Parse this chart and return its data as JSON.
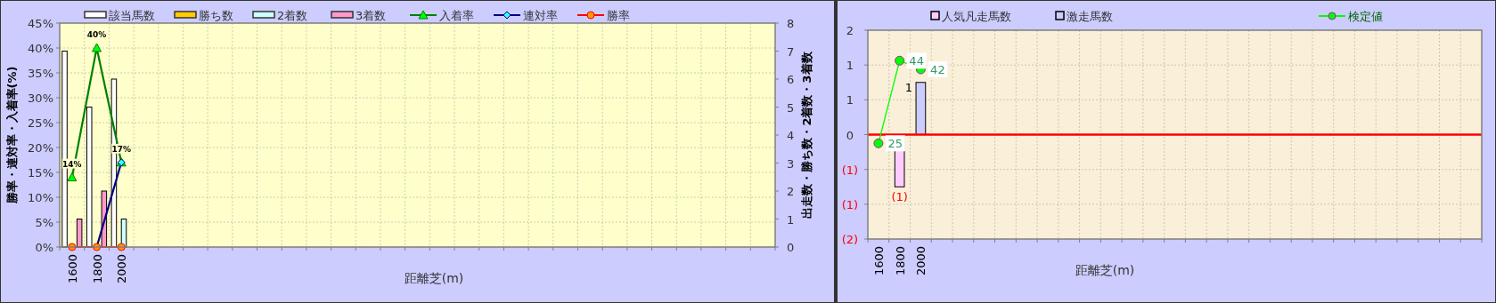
{
  "chart_data": [
    {
      "type": "bar",
      "xlabel": "距離芝(m)",
      "ylabel": "勝率・連対率・入着率(%)",
      "y2label": "出走数・勝ち数・2着数・3着数",
      "categories": [
        "1600",
        "1800",
        "2000",
        null,
        null,
        null,
        null,
        null,
        null,
        null,
        null,
        null,
        null,
        null,
        null,
        null,
        null,
        null,
        null,
        null,
        null,
        null,
        null,
        null,
        null,
        null,
        null,
        null,
        null
      ],
      "series": [
        {
          "name": "該当馬数",
          "type": "bar",
          "axis": "y2",
          "color": "#ffffff",
          "values": [
            7,
            5,
            6,
            null,
            null,
            null,
            null,
            null,
            null,
            null,
            null,
            null,
            null,
            null,
            null,
            null,
            null,
            null,
            null,
            null,
            null,
            null,
            null,
            null,
            null,
            null,
            null,
            null,
            null
          ]
        },
        {
          "name": "勝ち数",
          "type": "bar",
          "axis": "y2",
          "color": "#ffcc00",
          "values": [
            0,
            0,
            0,
            null,
            null,
            null,
            null,
            null,
            null,
            null,
            null,
            null,
            null,
            null,
            null,
            null,
            null,
            null,
            null,
            null,
            null,
            null,
            null,
            null,
            null,
            null,
            null,
            null,
            null
          ]
        },
        {
          "name": "2着数",
          "type": "bar",
          "axis": "y2",
          "color": "#ccffff",
          "values": [
            0,
            0,
            1,
            null,
            null,
            null,
            null,
            null,
            null,
            null,
            null,
            null,
            null,
            null,
            null,
            null,
            null,
            null,
            null,
            null,
            null,
            null,
            null,
            null,
            null,
            null,
            null,
            null,
            null
          ]
        },
        {
          "name": "3着数",
          "type": "bar",
          "axis": "y2",
          "color": "#ff99cc",
          "values": [
            1,
            2,
            0,
            null,
            null,
            null,
            null,
            null,
            null,
            null,
            null,
            null,
            null,
            null,
            null,
            null,
            null,
            null,
            null,
            null,
            null,
            null,
            null,
            null,
            null,
            null,
            null,
            null,
            null
          ]
        },
        {
          "name": "入着率",
          "type": "line",
          "color": "#008000",
          "marker": "triangle",
          "values": [
            14,
            40,
            17,
            null,
            null,
            null,
            null,
            null,
            null,
            null,
            null,
            null,
            null,
            null,
            null,
            null,
            null,
            null,
            null,
            null,
            null,
            null,
            null,
            null,
            null,
            null,
            null,
            null,
            null
          ],
          "value_labels": [
            "14%",
            "40%",
            "17%",
            null,
            null,
            null,
            null,
            null,
            null,
            null,
            null,
            null,
            null,
            null,
            null,
            null,
            null,
            null,
            null,
            null,
            null,
            null,
            null,
            null,
            null,
            null,
            null,
            null,
            null
          ]
        },
        {
          "name": "連対率",
          "type": "line",
          "color": "#000080",
          "marker": "diamond",
          "values": [
            0,
            0,
            17,
            null,
            null,
            null,
            null,
            null,
            null,
            null,
            null,
            null,
            null,
            null,
            null,
            null,
            null,
            null,
            null,
            null,
            null,
            null,
            null,
            null,
            null,
            null,
            null,
            null,
            null
          ]
        },
        {
          "name": "勝率",
          "type": "line",
          "color": "#ff0000",
          "marker": "circle",
          "values": [
            0,
            0,
            0,
            null,
            null,
            null,
            null,
            null,
            null,
            null,
            null,
            null,
            null,
            null,
            null,
            null,
            null,
            null,
            null,
            null,
            null,
            null,
            null,
            null,
            null,
            null,
            null,
            null,
            null
          ]
        }
      ],
      "ylim": [
        0,
        45
      ],
      "yticks": [
        {
          "value": 0,
          "label": "0%"
        },
        {
          "value": 5,
          "label": "5%"
        },
        {
          "value": 10,
          "label": "10%"
        },
        {
          "value": 15,
          "label": "15%"
        },
        {
          "value": 20,
          "label": "20%"
        },
        {
          "value": 25,
          "label": "25%"
        },
        {
          "value": 30,
          "label": "30%"
        },
        {
          "value": 35,
          "label": "35%"
        },
        {
          "value": 40,
          "label": "40%"
        },
        {
          "value": 45,
          "label": "45%"
        }
      ],
      "y2lim": [
        0,
        8
      ],
      "y2ticks": [
        0,
        1,
        2,
        3,
        4,
        5,
        6,
        7,
        8
      ],
      "grid": true,
      "legend": "top"
    },
    {
      "type": "bar",
      "xlabel": "距離芝(m)",
      "stacked": true,
      "categories": [
        "1600",
        "1800",
        "2000",
        null,
        null,
        null,
        null,
        null,
        null,
        null,
        null,
        null,
        null,
        null,
        null,
        null,
        null,
        null,
        null,
        null,
        null,
        null,
        null,
        null,
        null,
        null,
        null,
        null,
        null
      ],
      "series": [
        {
          "name": "人気凡走馬数",
          "type": "bar",
          "color": "#ffccff",
          "values": [
            null,
            -1,
            null,
            null,
            null,
            null,
            null,
            null,
            null,
            null,
            null,
            null,
            null,
            null,
            null,
            null,
            null,
            null,
            null,
            null,
            null,
            null,
            null,
            null,
            null,
            null,
            null,
            null,
            null
          ],
          "value_labels": [
            null,
            "(1)",
            null,
            null,
            null,
            null,
            null,
            null,
            null,
            null,
            null,
            null,
            null,
            null,
            null,
            null,
            null,
            null,
            null,
            null,
            null,
            null,
            null,
            null,
            null,
            null,
            null,
            null,
            null
          ]
        },
        {
          "name": "激走馬数",
          "type": "bar",
          "color": "#ccccff",
          "values": [
            null,
            null,
            1,
            null,
            null,
            null,
            null,
            null,
            null,
            null,
            null,
            null,
            null,
            null,
            null,
            null,
            null,
            null,
            null,
            null,
            null,
            null,
            null,
            null,
            null,
            null,
            null,
            null,
            null
          ],
          "value_labels": [
            null,
            null,
            "1",
            null,
            null,
            null,
            null,
            null,
            null,
            null,
            null,
            null,
            null,
            null,
            null,
            null,
            null,
            null,
            null,
            null,
            null,
            null,
            null,
            null,
            null,
            null,
            null,
            null,
            null
          ]
        },
        {
          "name": "検定値",
          "type": "line",
          "axis": "y2",
          "color": "#00ff00",
          "marker": "circle",
          "values": [
            25,
            44,
            42,
            null,
            null,
            null,
            null,
            null,
            null,
            null,
            null,
            null,
            null,
            null,
            null,
            null,
            null,
            null,
            null,
            null,
            null,
            null,
            null,
            null,
            null,
            null,
            null,
            null,
            null
          ],
          "value_labels": [
            "25",
            "44",
            "42",
            null,
            null,
            null,
            null,
            null,
            null,
            null,
            null,
            null,
            null,
            null,
            null,
            null,
            null,
            null,
            null,
            null,
            null,
            null,
            null,
            null,
            null,
            null,
            null,
            null,
            null
          ]
        }
      ],
      "ylim": [
        -2,
        2
      ],
      "yticks": [
        2,
        {
          "value": 1.333,
          "label": "1"
        },
        {
          "value": 0.667,
          "label": "1"
        },
        0,
        {
          "value": -0.667,
          "label": "(1)"
        },
        {
          "value": -1.333,
          "label": "(1)"
        },
        {
          "value": -2,
          "label": "(2)"
        }
      ],
      "y2lim": [
        3,
        51
      ],
      "ref_lines": [
        {
          "axis": "y",
          "value": 0,
          "color": "#ff0000"
        }
      ],
      "grid": true,
      "legend": "top"
    }
  ]
}
